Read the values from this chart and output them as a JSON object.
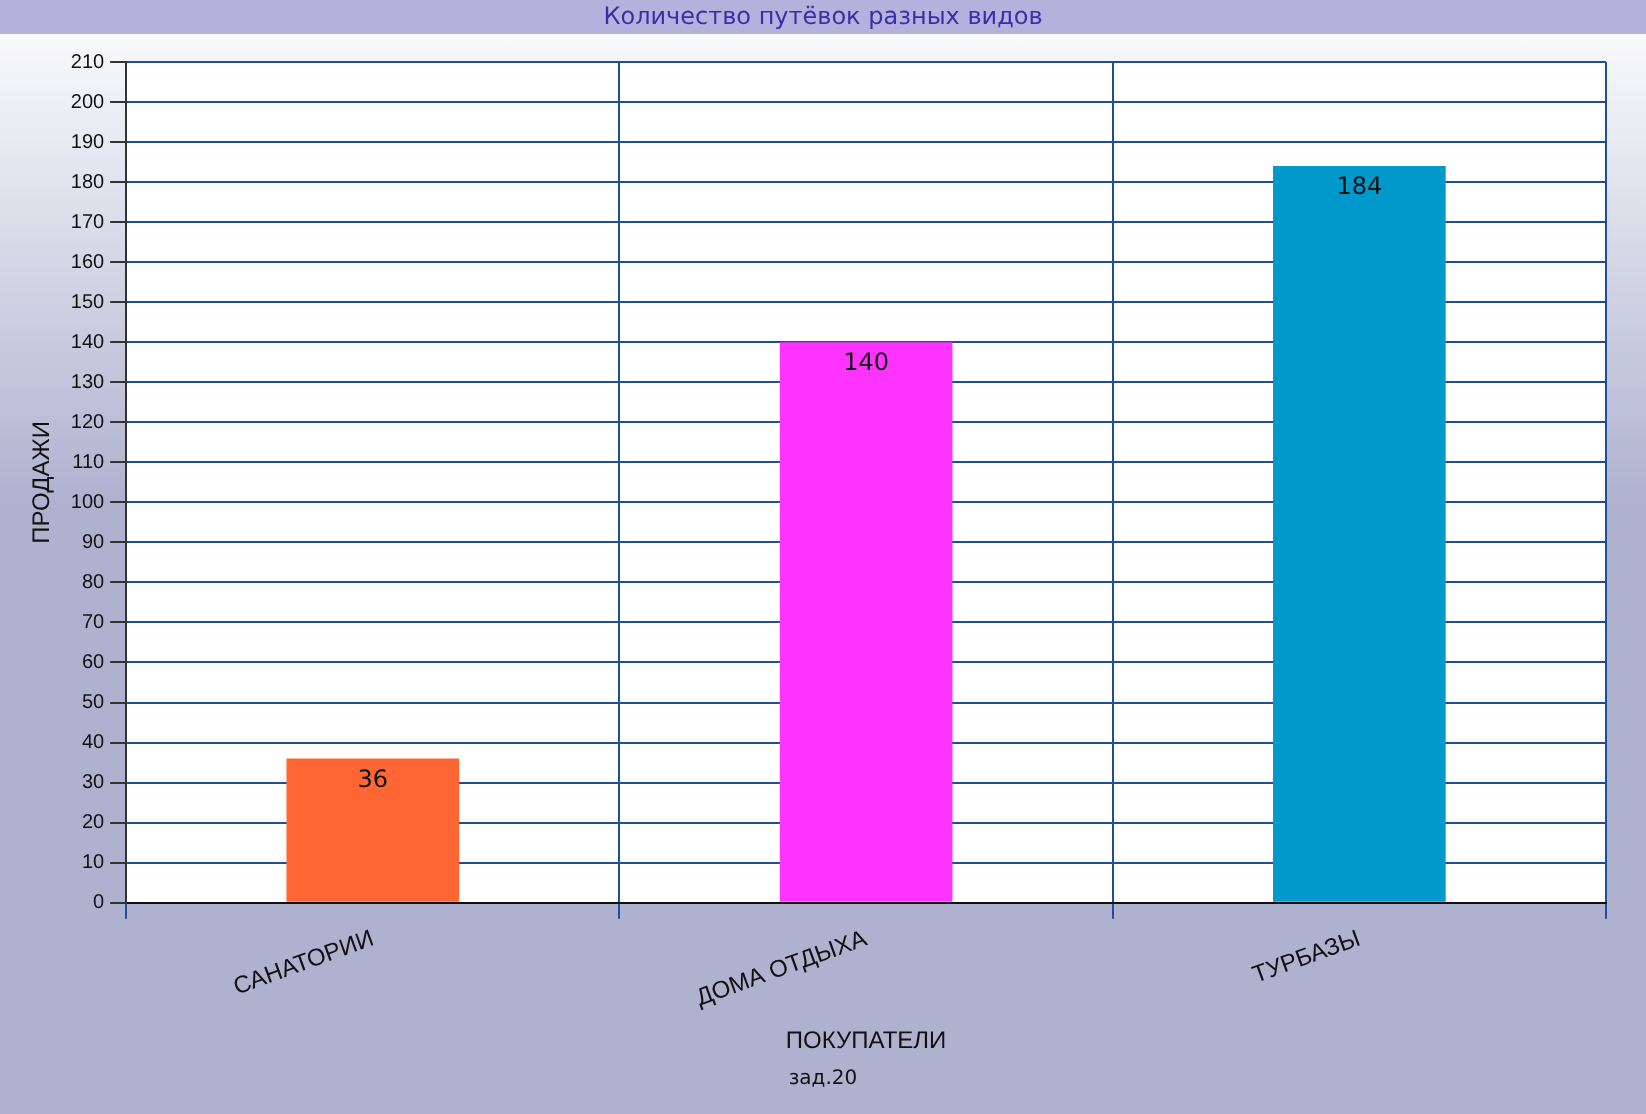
{
  "chart_data": {
    "type": "bar",
    "title": "Количество путёвок разных видов",
    "xlabel": "ПОКУПАТЕЛИ",
    "ylabel": "ПРОДАЖИ",
    "categories": [
      "САНАТОРИИ",
      "ДОМА ОТДЫХА",
      "ТУРБАЗЫ"
    ],
    "values": [
      36,
      140,
      184
    ],
    "colors": [
      "#ff6633",
      "#ff33ff",
      "#0099cc"
    ],
    "ylim": [
      0,
      210
    ],
    "yticks": [
      0,
      10,
      20,
      30,
      40,
      50,
      60,
      70,
      80,
      90,
      100,
      110,
      120,
      130,
      140,
      150,
      160,
      170,
      180,
      190,
      200,
      210
    ],
    "grid": true,
    "data_labels": true,
    "annotations": [
      "зад.20"
    ]
  }
}
